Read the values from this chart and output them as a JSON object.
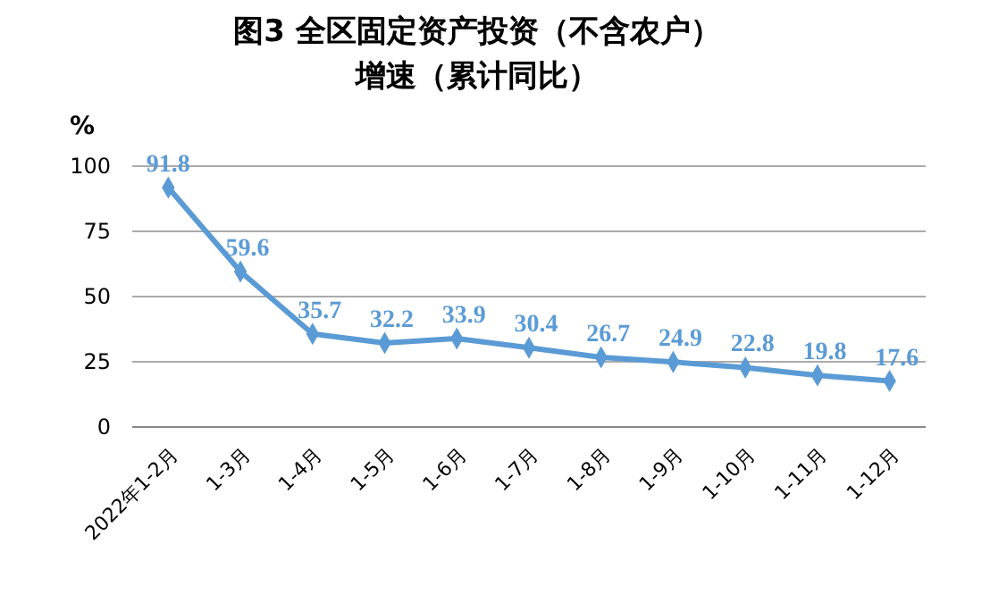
{
  "chart_data": {
    "type": "line",
    "title": "图3 全区固定资产投资（不含农户）",
    "subtitle": "增速（累计同比）",
    "ylabel": "%",
    "categories": [
      "2022年1-2月",
      "1-3月",
      "1-4月",
      "1-5月",
      "1-6月",
      "1-7月",
      "1-8月",
      "1-9月",
      "1-10月",
      "1-11月",
      "1-12月"
    ],
    "series": [
      {
        "color": "#5b9bd5",
        "values": [
          91.8,
          59.6,
          35.7,
          32.2,
          33.9,
          30.4,
          26.7,
          24.9,
          22.8,
          19.8,
          17.6
        ]
      }
    ],
    "ylim": [
      0,
      100
    ],
    "yticks": [
      0,
      25,
      50,
      75,
      100
    ],
    "grid": "y",
    "marker": "diamond",
    "line_style": "solid",
    "data_labels": true
  }
}
